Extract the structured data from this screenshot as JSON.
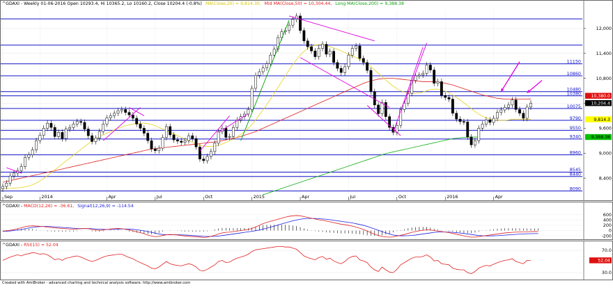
{
  "app": {
    "footer": "Created with AmiBroker - advanced charting and technical analysis software. http://www.amibroker.com"
  },
  "chart_data": [
    {
      "type": "line",
      "name": "price-panel",
      "header": {
        "symbol": "^GDAXI - Weekly 01-06-2016 Open 10293.4, Hi 10365.2, Lo 10160.2, Close 10204.4 (-0.8%)",
        "ma20": "MA(Close,20) = 9,814.30,",
        "ma50": "Mid MA(Close,50) = 10,304.44,",
        "ma200": "Long MA(Close,200) = 9,388.38"
      },
      "ylim": [
        7900,
        12450
      ],
      "y_ticks": [
        8400,
        9000,
        9600,
        10200,
        10800,
        11400,
        12000
      ],
      "y_tick_labels": [
        "8,400",
        "9,000",
        "9,600",
        "10,200",
        "10,800",
        "11,400",
        "12,000"
      ],
      "x_labels": [
        {
          "week": 0,
          "label": "Sep"
        },
        {
          "week": 10,
          "label": "2014"
        },
        {
          "week": 28,
          "label": "Apr"
        },
        {
          "week": 41,
          "label": "Jul"
        },
        {
          "week": 54,
          "label": "Oct"
        },
        {
          "week": 67,
          "label": "2015"
        },
        {
          "week": 80,
          "label": "Apr"
        },
        {
          "week": 93,
          "label": "Jul"
        },
        {
          "week": 106,
          "label": "Oct"
        },
        {
          "week": 119,
          "label": "2016"
        },
        {
          "week": 132,
          "label": "Apr"
        }
      ],
      "levels": [
        {
          "value": 12230,
          "label": ""
        },
        {
          "value": 11600,
          "label": ""
        },
        {
          "value": 11150,
          "label": "11150"
        },
        {
          "value": 10860,
          "label": "10860"
        },
        {
          "value": 10480,
          "label": "10480"
        },
        {
          "value": 10380,
          "label": "10380"
        },
        {
          "value": 10075,
          "label": "10075"
        },
        {
          "value": 9790,
          "label": "9790"
        },
        {
          "value": 9550,
          "label": "9550"
        },
        {
          "value": 9340,
          "label": "9340"
        },
        {
          "value": 8960,
          "label": "8960"
        },
        {
          "value": 8545,
          "label": "8545"
        },
        {
          "value": 8440,
          "label": "8440"
        },
        {
          "value": 8090,
          "label": "8090"
        }
      ],
      "price_badges": [
        {
          "value": 10380,
          "label": "10,380.0",
          "color": "#e01010"
        },
        {
          "value": 10204.4,
          "label": "10,204.4",
          "color": "#000000"
        },
        {
          "value": 9814.3,
          "label": "9,814.3",
          "color": "#ffff00"
        },
        {
          "value": 9388.38,
          "label": "9,388.38",
          "color": "#00c000"
        }
      ],
      "close": [
        8200,
        8280,
        8450,
        8520,
        8580,
        8680,
        8900,
        8960,
        9080,
        9300,
        9430,
        9600,
        9720,
        9620,
        9400,
        9500,
        9350,
        9580,
        9620,
        9700,
        9760,
        9740,
        9580,
        9420,
        9280,
        9360,
        9520,
        9700,
        9850,
        9900,
        9960,
        10020,
        10050,
        9980,
        9920,
        9840,
        9700,
        9600,
        9480,
        9300,
        9100,
        9060,
        9120,
        9380,
        9640,
        9440,
        9320,
        9290,
        9260,
        9300,
        9420,
        9350,
        9150,
        8860,
        8820,
        8920,
        9040,
        9240,
        9520,
        9600,
        9380,
        9400,
        9620,
        9800,
        9880,
        9940,
        10050,
        10560,
        10870,
        10960,
        11050,
        11150,
        11360,
        11500,
        11780,
        11920,
        11950,
        12080,
        12220,
        12300,
        11950,
        11700,
        11560,
        11460,
        11320,
        11520,
        11620,
        11380,
        11450,
        11180,
        11040,
        10940,
        11080,
        11360,
        11520,
        11580,
        11280,
        11180,
        10990,
        10480,
        10160,
        9950,
        10220,
        9880,
        9620,
        9500,
        9670,
        10050,
        10200,
        10440,
        10750,
        10860,
        10880,
        10920,
        11120,
        11000,
        10680,
        10720,
        10390,
        10340,
        10300,
        9960,
        9820,
        9760,
        9750,
        9390,
        9200,
        9300,
        9600,
        9700,
        9800,
        9740,
        9840,
        9980,
        10040,
        10100,
        10160,
        10280,
        10050,
        9960,
        9840,
        10110,
        10204
      ],
      "ma20": [
        8150,
        8150,
        8155,
        8160,
        8165,
        8175,
        8190,
        8210,
        8240,
        8280,
        8330,
        8390,
        8460,
        8530,
        8600,
        8670,
        8740,
        8810,
        8880,
        8950,
        9020,
        9090,
        9160,
        9230,
        9300,
        9350,
        9400,
        9440,
        9480,
        9520,
        9560,
        9600,
        9630,
        9660,
        9680,
        9700,
        9710,
        9720,
        9720,
        9710,
        9690,
        9660,
        9620,
        9580,
        9540,
        9500,
        9460,
        9420,
        9380,
        9340,
        9300,
        9260,
        9220,
        9190,
        9170,
        9160,
        9160,
        9170,
        9190,
        9220,
        9260,
        9300,
        9340,
        9390,
        9450,
        9520,
        9600,
        9690,
        9800,
        9920,
        10040,
        10170,
        10300,
        10440,
        10580,
        10720,
        10860,
        11000,
        11130,
        11250,
        11360,
        11450,
        11520,
        11570,
        11600,
        11610,
        11610,
        11590,
        11560,
        11530,
        11500,
        11460,
        11420,
        11380,
        11340,
        11300,
        11260,
        11210,
        11150,
        11080,
        11000,
        10920,
        10840,
        10760,
        10680,
        10610,
        10550,
        10500,
        10470,
        10450,
        10440,
        10440,
        10450,
        10470,
        10500,
        10530,
        10540,
        10540,
        10520,
        10490,
        10450,
        10400,
        10340,
        10280,
        10210,
        10140,
        10070,
        10000,
        9940,
        9890,
        9850,
        9820,
        9800,
        9790,
        9790,
        9790,
        9800,
        9810,
        9820,
        9820,
        9810,
        9812,
        9814
      ],
      "ma50": [
        8300,
        8320,
        8340,
        8360,
        8380,
        8400,
        8420,
        8440,
        8460,
        8480,
        8500,
        8520,
        8540,
        8560,
        8580,
        8600,
        8620,
        8640,
        8660,
        8680,
        8700,
        8720,
        8740,
        8760,
        8780,
        8800,
        8820,
        8840,
        8860,
        8880,
        8900,
        8920,
        8940,
        8960,
        8980,
        9000,
        9020,
        9040,
        9060,
        9080,
        9100,
        9110,
        9120,
        9130,
        9140,
        9150,
        9160,
        9170,
        9180,
        9190,
        9200,
        9210,
        9220,
        9230,
        9240,
        9250,
        9260,
        9270,
        9280,
        9300,
        9320,
        9340,
        9360,
        9380,
        9400,
        9430,
        9460,
        9490,
        9520,
        9560,
        9600,
        9640,
        9680,
        9720,
        9760,
        9800,
        9840,
        9880,
        9920,
        9960,
        10000,
        10040,
        10080,
        10120,
        10160,
        10200,
        10240,
        10280,
        10320,
        10360,
        10400,
        10440,
        10480,
        10520,
        10560,
        10600,
        10640,
        10680,
        10710,
        10740,
        10760,
        10780,
        10790,
        10800,
        10800,
        10800,
        10790,
        10780,
        10770,
        10760,
        10750,
        10740,
        10730,
        10720,
        10720,
        10720,
        10720,
        10710,
        10700,
        10680,
        10660,
        10640,
        10610,
        10580,
        10550,
        10520,
        10490,
        10460,
        10430,
        10400,
        10380,
        10360,
        10340,
        10320,
        10310,
        10300,
        10300,
        10300,
        10300,
        10300,
        10302,
        10303,
        10304
      ],
      "ma200_start_week": 70,
      "ma200": [
        8000,
        8030,
        8060,
        8090,
        8120,
        8150,
        8180,
        8210,
        8240,
        8270,
        8300,
        8330,
        8360,
        8390,
        8420,
        8450,
        8480,
        8510,
        8540,
        8570,
        8600,
        8630,
        8660,
        8690,
        8720,
        8750,
        8780,
        8810,
        8840,
        8870,
        8900,
        8930,
        8960,
        8990,
        9010,
        9030,
        9050,
        9070,
        9090,
        9110,
        9130,
        9150,
        9170,
        9190,
        9210,
        9230,
        9250,
        9270,
        9290,
        9310,
        9330,
        9350,
        9360,
        9370,
        9380,
        9384,
        9386,
        9388,
        9388
      ],
      "trend_lines": [
        {
          "color": "#00a000",
          "points": [
            [
              64,
              9300
            ],
            [
              77,
              12200
            ]
          ]
        },
        {
          "color": "#e000e0",
          "points": [
            [
              77,
              12300
            ],
            [
              100,
              11700
            ]
          ]
        },
        {
          "color": "#e000e0",
          "points": [
            [
              80,
              11300
            ],
            [
              104,
              10100
            ]
          ]
        },
        {
          "color": "#e000e0",
          "points": [
            [
              98,
              10150
            ],
            [
              107,
              9420
            ]
          ]
        },
        {
          "color": "#e000e0",
          "points": [
            [
              105,
              9500
            ],
            [
              113,
              11550
            ]
          ]
        },
        {
          "color": "#e000e0",
          "points": [
            [
              108,
              10200
            ],
            [
              114,
              11650
            ]
          ]
        },
        {
          "color": "#e000e0",
          "points": [
            [
              53,
              9050
            ],
            [
              61,
              9900
            ]
          ]
        },
        {
          "color": "#e000e0",
          "points": [
            [
              58,
              9500
            ],
            [
              66,
              9950
            ]
          ]
        },
        {
          "color": "#e000e0",
          "points": [
            [
              27,
              9300
            ],
            [
              37,
              10100
            ]
          ]
        },
        {
          "color": "#e000e0",
          "points": [
            [
              1,
              8650
            ],
            [
              5,
              8520
            ]
          ]
        },
        {
          "color": "#e000e0",
          "points": [
            [
              34,
              10100
            ],
            [
              38,
              9900
            ]
          ]
        }
      ],
      "arrows": [
        {
          "from": [
            139,
            11200
          ],
          "to": [
            134,
            10480
          ]
        },
        {
          "from": [
            145,
            10750
          ],
          "to": [
            141,
            10450
          ]
        }
      ]
    },
    {
      "type": "line",
      "name": "macd-panel",
      "header": {
        "symbol": "^GDAXI - ",
        "macd": "MACD(12,26) = -36.61,",
        "signal": "Signal(12,26,9) = -114.54"
      },
      "ylim": [
        -330,
        780
      ],
      "y_ticks": [
        -200,
        0,
        200,
        400,
        600
      ],
      "y_tick_labels": [
        "-200",
        "0",
        "200",
        "400",
        "600"
      ],
      "macd": [
        -20,
        -10,
        10,
        40,
        70,
        110,
        150,
        170,
        180,
        170,
        160,
        150,
        130,
        120,
        100,
        90,
        80,
        70,
        60,
        50,
        60,
        70,
        80,
        70,
        40,
        20,
        10,
        20,
        40,
        60,
        70,
        80,
        70,
        50,
        20,
        -10,
        -50,
        -80,
        -120,
        -170,
        -210,
        -230,
        -220,
        -190,
        -160,
        -150,
        -160,
        -170,
        -190,
        -210,
        -220,
        -230,
        -240,
        -250,
        -260,
        -250,
        -220,
        -180,
        -130,
        -90,
        -70,
        -60,
        -40,
        -20,
        0,
        20,
        40,
        80,
        140,
        200,
        260,
        310,
        350,
        390,
        430,
        470,
        510,
        540,
        560,
        570,
        560,
        530,
        500,
        470,
        440,
        410,
        390,
        360,
        330,
        300,
        270,
        240,
        220,
        200,
        170,
        130,
        90,
        40,
        -20,
        -80,
        -140,
        -190,
        -220,
        -240,
        -250,
        -240,
        -210,
        -180,
        -150,
        -110,
        -70,
        -40,
        -10,
        10,
        30,
        20,
        0,
        -20,
        -40,
        -60,
        -80,
        -110,
        -140,
        -170,
        -200,
        -230,
        -250,
        -250,
        -230,
        -210,
        -190,
        -170,
        -150,
        -130,
        -110,
        -90,
        -80,
        -70,
        -60,
        -55,
        -50,
        -45,
        -40,
        -38,
        -37
      ],
      "signal": [
        -30,
        -25,
        -15,
        0,
        20,
        40,
        70,
        100,
        120,
        140,
        150,
        155,
        155,
        150,
        140,
        130,
        120,
        110,
        100,
        90,
        80,
        75,
        75,
        75,
        70,
        60,
        50,
        45,
        40,
        45,
        50,
        55,
        60,
        60,
        55,
        45,
        30,
        10,
        -10,
        -40,
        -70,
        -100,
        -130,
        -150,
        -160,
        -160,
        -160,
        -160,
        -165,
        -170,
        -180,
        -190,
        -200,
        -210,
        -220,
        -225,
        -225,
        -220,
        -210,
        -190,
        -170,
        -150,
        -130,
        -110,
        -90,
        -70,
        -50,
        -30,
        -5,
        20,
        55,
        90,
        130,
        170,
        210,
        250,
        290,
        330,
        370,
        400,
        430,
        450,
        460,
        460,
        460,
        450,
        440,
        430,
        410,
        390,
        370,
        350,
        330,
        310,
        290,
        260,
        230,
        200,
        160,
        110,
        60,
        10,
        -40,
        -90,
        -130,
        -170,
        -190,
        -200,
        -200,
        -195,
        -185,
        -170,
        -150,
        -130,
        -110,
        -90,
        -70,
        -60,
        -55,
        -55,
        -60,
        -70,
        -80,
        -95,
        -110,
        -130,
        -150,
        -170,
        -190,
        -200,
        -205,
        -205,
        -200,
        -195,
        -185,
        -175,
        -165,
        -155,
        -145,
        -135,
        -128,
        -122,
        -118,
        -116,
        -115
      ],
      "series_colors": {
        "macd": "#e02020",
        "signal": "#2020e0",
        "histogram": "#000000"
      }
    },
    {
      "type": "line",
      "name": "rsi-panel",
      "header": {
        "symbol": "^GDAXI - ",
        "rsi": "RSI(15) = 52.04"
      },
      "ylim": [
        20,
        80
      ],
      "y_ticks": [
        30,
        70
      ],
      "y_tick_labels": [
        "30.0",
        "70.0"
      ],
      "badge": {
        "value": 52.04,
        "label": "52.04",
        "color": "#e01010"
      },
      "rsi": [
        52,
        55,
        58,
        60,
        62,
        60,
        63,
        64,
        66,
        65,
        63,
        64,
        62,
        58,
        53,
        55,
        52,
        56,
        57,
        59,
        60,
        58,
        55,
        52,
        50,
        52,
        55,
        58,
        60,
        61,
        62,
        63,
        63,
        60,
        57,
        55,
        51,
        48,
        45,
        42,
        38,
        37,
        40,
        45,
        50,
        46,
        44,
        43,
        42,
        44,
        46,
        44,
        40,
        34,
        33,
        36,
        40,
        44,
        50,
        52,
        48,
        49,
        53,
        56,
        58,
        60,
        63,
        68,
        71,
        72,
        73,
        74,
        75,
        76,
        77,
        77,
        76,
        76,
        74,
        72,
        66,
        60,
        57,
        55,
        53,
        57,
        59,
        54,
        56,
        51,
        48,
        46,
        50,
        56,
        59,
        60,
        53,
        51,
        48,
        40,
        35,
        32,
        40,
        35,
        31,
        30,
        36,
        44,
        48,
        52,
        56,
        58,
        58,
        59,
        62,
        58,
        51,
        52,
        46,
        45,
        44,
        38,
        36,
        35,
        35,
        30,
        28,
        32,
        38,
        41,
        43,
        42,
        45,
        48,
        50,
        52,
        53,
        55,
        50,
        48,
        46,
        52,
        52
      ]
    }
  ]
}
